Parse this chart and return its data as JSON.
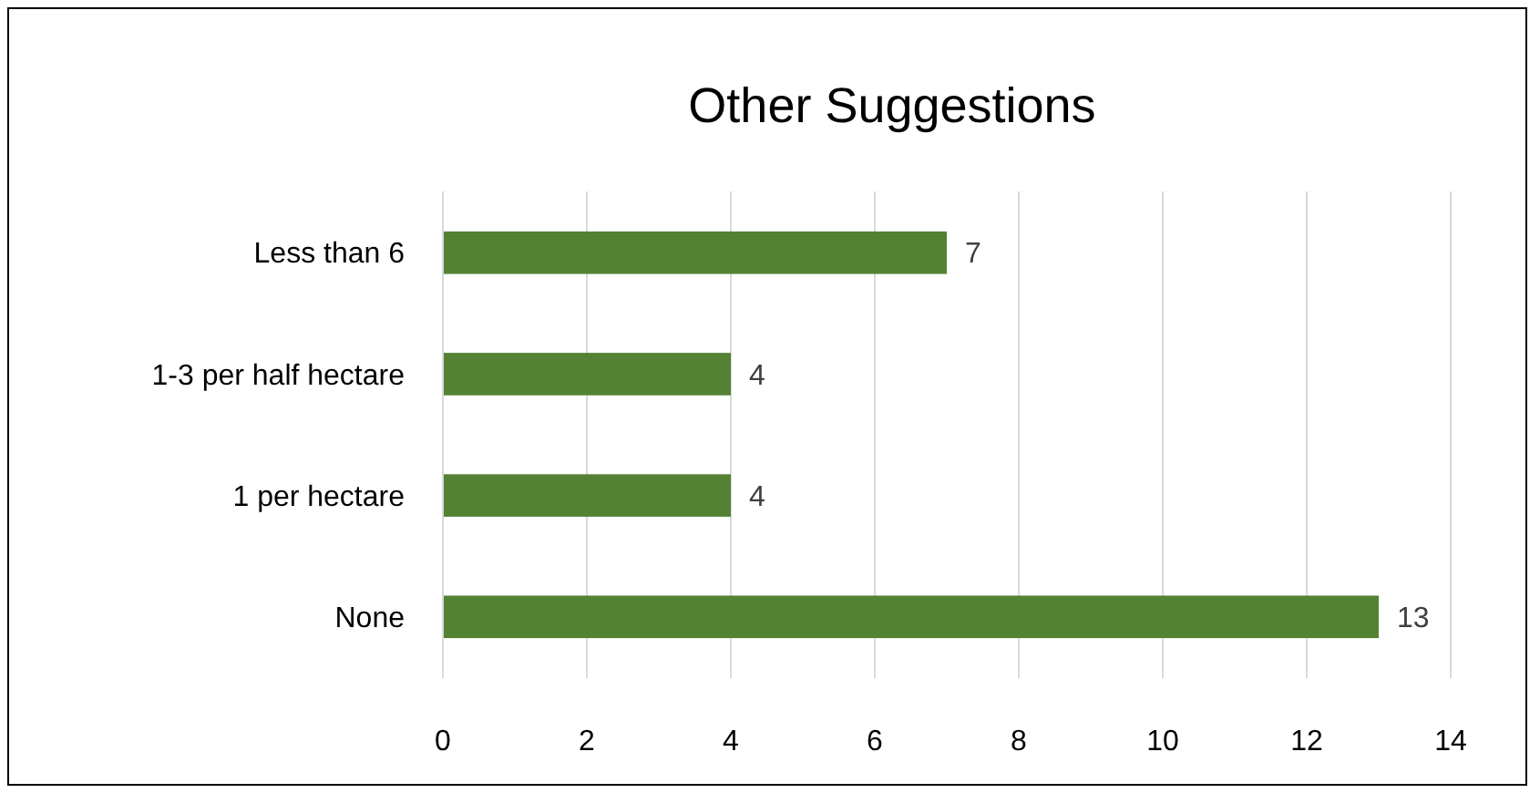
{
  "chart_data": {
    "type": "bar",
    "title": "Other Suggestions",
    "orientation": "horizontal",
    "categories": [
      "Less than 6",
      "1-3 per half hectare",
      "1 per hectare",
      "None"
    ],
    "values": [
      7,
      4,
      4,
      13
    ],
    "color": "#548235",
    "xlim": [
      0,
      14
    ],
    "xticks": [
      0,
      2,
      4,
      6,
      8,
      10,
      12,
      14
    ],
    "grid": "x",
    "data_labels": true
  }
}
